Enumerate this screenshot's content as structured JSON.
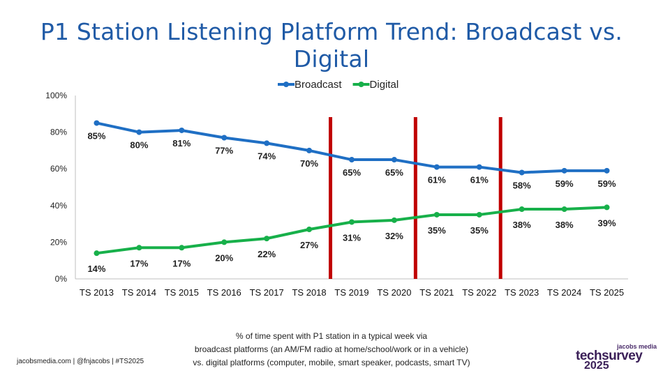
{
  "title": "P1 Station Listening Platform Trend: Broadcast vs. Digital",
  "chart_data": {
    "type": "line",
    "categories": [
      "TS 2013",
      "TS 2014",
      "TS 2015",
      "TS 2016",
      "TS 2017",
      "TS 2018",
      "TS 2019",
      "TS 2020",
      "TS 2021",
      "TS 2022",
      "TS 2023",
      "TS 2024",
      "TS 2025"
    ],
    "series": [
      {
        "name": "Broadcast",
        "color": "#1f6fc4",
        "values": [
          85,
          80,
          81,
          77,
          74,
          70,
          65,
          65,
          61,
          61,
          58,
          59,
          59
        ]
      },
      {
        "name": "Digital",
        "color": "#17b04a",
        "values": [
          14,
          17,
          17,
          20,
          22,
          27,
          31,
          32,
          35,
          35,
          38,
          38,
          39
        ]
      }
    ],
    "ylim": [
      0,
      100
    ],
    "yticks": [
      "0%",
      "20%",
      "40%",
      "60%",
      "80%",
      "100%"
    ],
    "value_suffix": "%",
    "legend_position": "top",
    "grid": false,
    "markers": {
      "color": "#c00000",
      "between_categories": [
        [
          5,
          6
        ],
        [
          7,
          8
        ],
        [
          9,
          10
        ]
      ]
    }
  },
  "footnote": {
    "line1": "% of time spent with P1 station in a typical week via",
    "line2": "broadcast platforms (an AM/FM radio at home/school/work or in a vehicle)",
    "line3": "vs. digital platforms (computer, mobile, smart speaker, podcasts, smart TV)"
  },
  "credit": "jacobsmedia.com  |  @fnjacobs  |  #TS2025",
  "brand": {
    "top": "jacobs media",
    "name": "techsurvey",
    "year": "2025"
  }
}
